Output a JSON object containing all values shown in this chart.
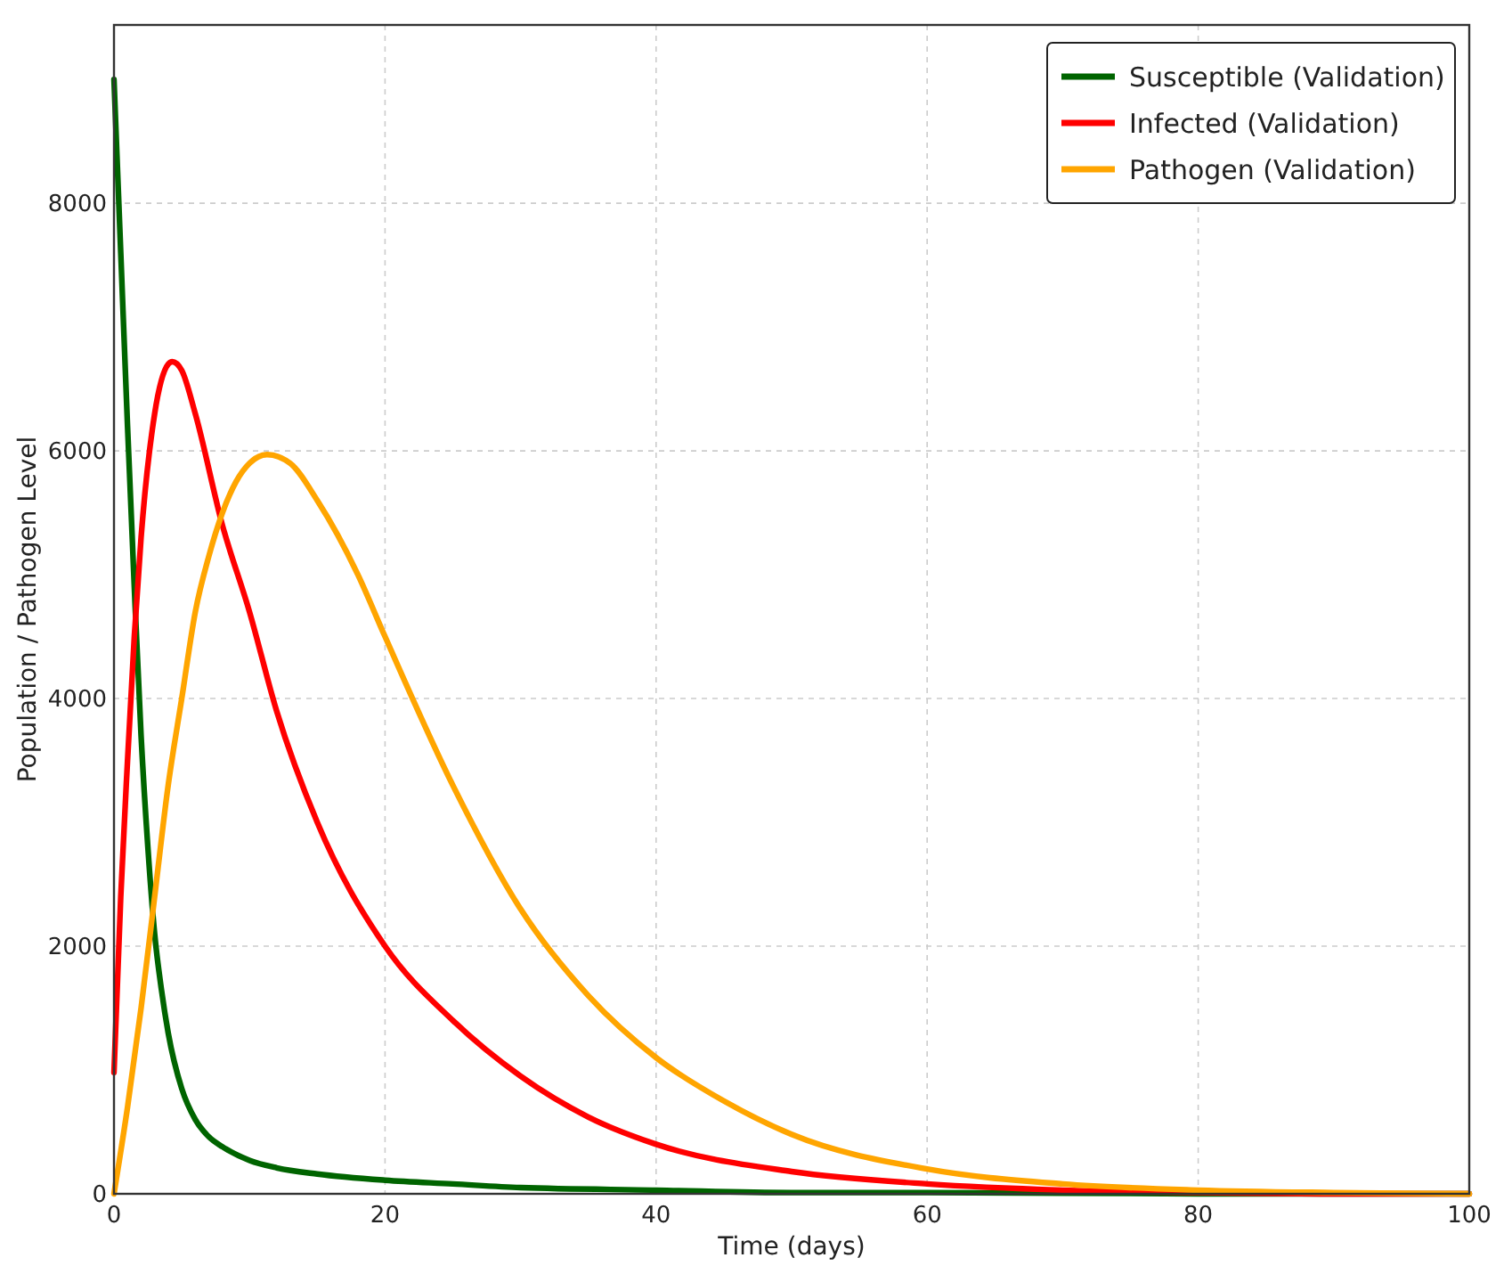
{
  "chart_data": {
    "type": "line",
    "xlabel": "Time (days)",
    "ylabel": "Population / Pathogen Level",
    "xlim": [
      0,
      100
    ],
    "xticks": [
      0,
      20,
      40,
      60,
      80,
      100
    ],
    "ylim": [
      0,
      9440
    ],
    "yticks": [
      0,
      2000,
      4000,
      6000,
      8000
    ],
    "grid": true,
    "legend": "top right",
    "line_style": "solid",
    "series": [
      {
        "name": "Susceptible (Validation)",
        "color": "#006400",
        "x": [
          0,
          0.5,
          1,
          1.5,
          2,
          2.5,
          3,
          3.5,
          4,
          5,
          6,
          7,
          8,
          10,
          12,
          15,
          20,
          25,
          30,
          40,
          50,
          60,
          80,
          100
        ],
        "values": [
          9000,
          7600,
          6200,
          4900,
          3700,
          2800,
          2100,
          1650,
          1300,
          850,
          600,
          460,
          380,
          270,
          210,
          160,
          110,
          80,
          50,
          30,
          10,
          10,
          0,
          0
        ]
      },
      {
        "name": "Infected (Validation)",
        "color": "#ff0000",
        "x": [
          0,
          0.5,
          1,
          1.5,
          2,
          3,
          4,
          4.3,
          5,
          6,
          8,
          10,
          12,
          15,
          20,
          25,
          30,
          35,
          40,
          50,
          60,
          70,
          80,
          90,
          100
        ],
        "values": [
          980,
          2400,
          3500,
          4500,
          5300,
          6300,
          6700,
          6720,
          6650,
          6300,
          5400,
          4700,
          3900,
          3000,
          2000,
          1400,
          950,
          620,
          400,
          180,
          80,
          30,
          10,
          0,
          0
        ]
      },
      {
        "name": "Pathogen (Validation)",
        "color": "#ffa500",
        "x": [
          0,
          1,
          2,
          3,
          4,
          5,
          6,
          7,
          8,
          9,
          10,
          11.3,
          13,
          15,
          18,
          20,
          25,
          30,
          35,
          40,
          45,
          50,
          60,
          70,
          80,
          90,
          100
        ],
        "values": [
          0,
          700,
          1500,
          2400,
          3300,
          4000,
          4700,
          5150,
          5500,
          5750,
          5900,
          5970,
          5900,
          5600,
          5000,
          4500,
          3300,
          2300,
          1600,
          1100,
          750,
          480,
          200,
          80,
          30,
          10,
          0
        ]
      }
    ]
  }
}
